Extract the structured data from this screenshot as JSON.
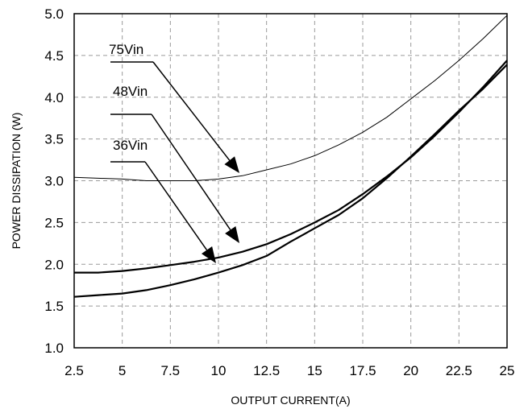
{
  "chart_data": {
    "type": "line",
    "title": "",
    "xlabel": "OUTPUT CURRENT(A)",
    "ylabel": "POWER DISSIPATION (W)",
    "xlim": [
      2.5,
      25
    ],
    "ylim": [
      1.0,
      5.0
    ],
    "xticks": [
      "2.5",
      "5",
      "7.5",
      "10",
      "12.5",
      "15",
      "17.5",
      "20",
      "22.5",
      "25"
    ],
    "yticks": [
      "1.0",
      "1.5",
      "2.0",
      "2.5",
      "3.0",
      "3.5",
      "4.0",
      "4.5",
      "5.0"
    ],
    "grid": true,
    "series": [
      {
        "name": "75Vin",
        "color": "#000000",
        "x": [
          2.5,
          5,
          6.25,
          7.5,
          8.75,
          10,
          11.25,
          12.5,
          13.75,
          15,
          16.25,
          17.5,
          18.75,
          20,
          21.25,
          22.5,
          23.75,
          25
        ],
        "y": [
          3.04,
          3.02,
          3.0,
          3.0,
          3.0,
          3.02,
          3.06,
          3.13,
          3.2,
          3.3,
          3.43,
          3.58,
          3.76,
          3.98,
          4.2,
          4.44,
          4.7,
          4.98
        ]
      },
      {
        "name": "48Vin",
        "color": "#000000",
        "x": [
          2.5,
          3.75,
          5,
          6.25,
          7.5,
          8.75,
          10,
          11.25,
          12.5,
          13.75,
          15,
          16.25,
          17.5,
          18.75,
          20,
          21.25,
          22.5,
          23.75,
          25
        ],
        "y": [
          1.9,
          1.9,
          1.92,
          1.95,
          1.99,
          2.03,
          2.08,
          2.15,
          2.24,
          2.36,
          2.5,
          2.65,
          2.84,
          3.05,
          3.28,
          3.54,
          3.82,
          4.12,
          4.44
        ]
      },
      {
        "name": "36Vin",
        "color": "#000000",
        "x": [
          2.5,
          3.75,
          5,
          6.25,
          7.5,
          8.75,
          10,
          11.25,
          12.5,
          13.75,
          15,
          16.25,
          17.5,
          18.75,
          20,
          21.25,
          22.5,
          23.75,
          25
        ],
        "y": [
          1.61,
          1.63,
          1.65,
          1.69,
          1.75,
          1.82,
          1.9,
          1.99,
          2.1,
          2.27,
          2.43,
          2.59,
          2.79,
          3.03,
          3.29,
          3.56,
          3.84,
          4.1,
          4.39
        ]
      }
    ],
    "annotations": [
      {
        "series": "75Vin",
        "text": "75Vin"
      },
      {
        "series": "48Vin",
        "text": "48Vin"
      },
      {
        "series": "36Vin",
        "text": "36Vin"
      }
    ]
  }
}
